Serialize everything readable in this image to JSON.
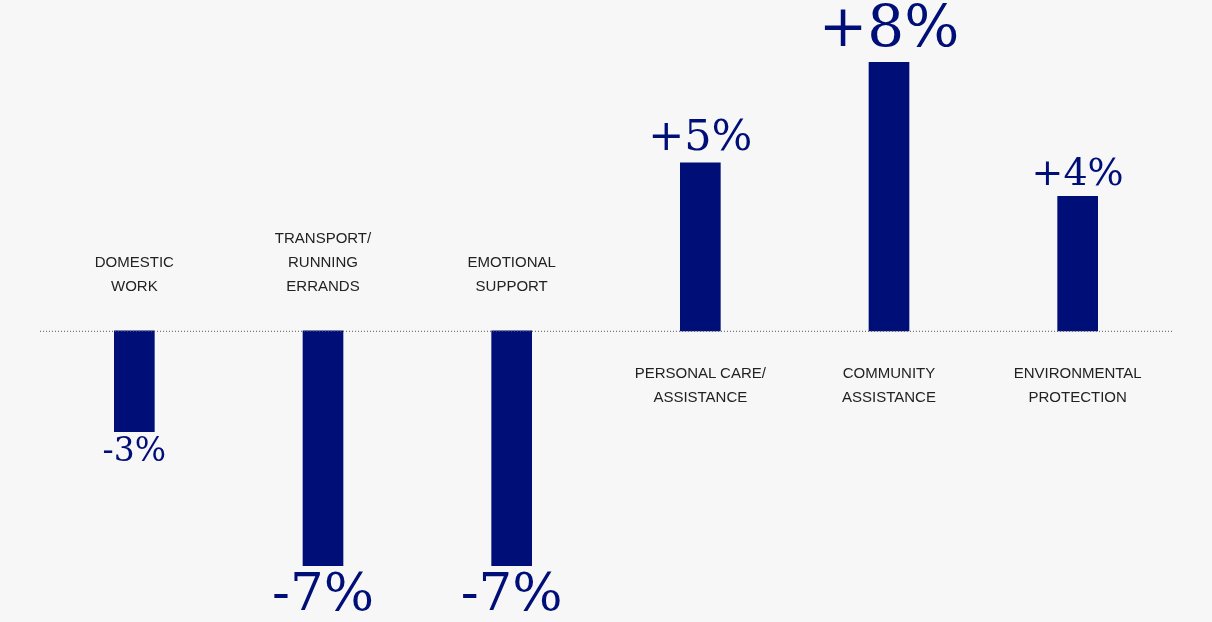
{
  "chart_data": {
    "type": "bar",
    "categories": [
      "DOMESTIC\nWORK",
      "TRANSPORT/\nRUNNING\nERRANDS",
      "EMOTIONAL\nSUPPORT",
      "PERSONAL CARE/\nASSISTANCE",
      "COMMUNITY\nASSISTANCE",
      "ENVIRONMENTAL\nPROTECTION"
    ],
    "values": [
      -3,
      -7,
      -7,
      5,
      8,
      4
    ],
    "value_labels": [
      "-3%",
      "-7%",
      "-7%",
      "+5%",
      "+8%",
      "+4%"
    ],
    "color": "#000e78",
    "ref_lines": [
      {
        "axis": "y",
        "value": 0,
        "line_style": "dotted",
        "color": "#555555"
      }
    ]
  }
}
